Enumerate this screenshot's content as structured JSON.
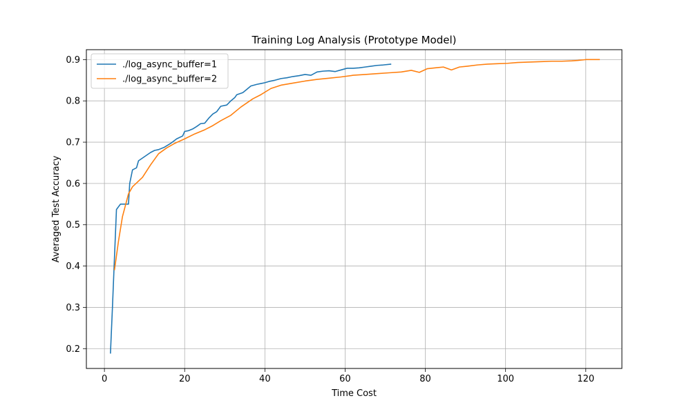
{
  "chart_data": {
    "type": "line",
    "title": "Training Log Analysis (Prototype Model)",
    "xlabel": "Time Cost",
    "ylabel": "Averaged Test Accuracy",
    "xlim": [
      -4.5,
      129.0
    ],
    "ylim": [
      0.152,
      0.924
    ],
    "x_ticks": [
      0,
      20,
      40,
      60,
      80,
      100,
      120
    ],
    "y_ticks": [
      0.2,
      0.3,
      0.4,
      0.5,
      0.6,
      0.7,
      0.8,
      0.9
    ],
    "grid": true,
    "legend_position": "top-left",
    "series": [
      {
        "name": "./log_async_buffer=1",
        "color": "#1f77b4",
        "x": [
          1.5,
          2.0,
          2.5,
          3.0,
          4.0,
          5.0,
          6.0,
          6.3,
          7.0,
          8.0,
          8.5,
          10.0,
          11.5,
          12.5,
          13.5,
          15.0,
          16.5,
          18.0,
          19.5,
          20.0,
          21.0,
          22.0,
          23.0,
          24.0,
          25.0,
          26.0,
          27.0,
          28.0,
          29.0,
          30.5,
          31.5,
          32.5,
          33.0,
          34.5,
          35.5,
          36.5,
          38.0,
          39.0,
          40.0,
          41.0,
          42.5,
          44.0,
          45.5,
          47.0,
          48.5,
          50.0,
          51.5,
          53.0,
          54.5,
          56.0,
          57.5,
          59.0,
          60.5,
          62.0,
          63.5,
          65.0,
          66.5,
          68.0,
          69.5,
          71.5
        ],
        "y": [
          0.188,
          0.3,
          0.42,
          0.537,
          0.55,
          0.55,
          0.55,
          0.6,
          0.633,
          0.638,
          0.655,
          0.665,
          0.675,
          0.68,
          0.682,
          0.688,
          0.697,
          0.708,
          0.715,
          0.726,
          0.728,
          0.732,
          0.738,
          0.745,
          0.746,
          0.758,
          0.768,
          0.774,
          0.787,
          0.79,
          0.8,
          0.808,
          0.815,
          0.82,
          0.828,
          0.836,
          0.84,
          0.842,
          0.844,
          0.847,
          0.85,
          0.854,
          0.856,
          0.859,
          0.861,
          0.864,
          0.862,
          0.87,
          0.872,
          0.873,
          0.871,
          0.875,
          0.879,
          0.879,
          0.88,
          0.882,
          0.884,
          0.886,
          0.887,
          0.889
        ]
      },
      {
        "name": "./log_async_buffer=2",
        "color": "#ff7f0e",
        "x": [
          2.5,
          3.5,
          4.5,
          6.0,
          7.0,
          9.5,
          11.5,
          13.5,
          15.5,
          17.5,
          20.0,
          22.5,
          25.0,
          27.0,
          29.0,
          31.5,
          34.0,
          37.0,
          39.0,
          41.5,
          44.0,
          47.0,
          50.0,
          53.0,
          56.0,
          59.0,
          62.0,
          65.0,
          68.0,
          71.0,
          74.0,
          76.5,
          78.5,
          80.5,
          82.5,
          84.5,
          86.5,
          88.5,
          90.5,
          93.0,
          95.5,
          98.0,
          100.5,
          103.0,
          106.0,
          109.0,
          111.5,
          114.0,
          116.5,
          118.0,
          120.0,
          123.5
        ],
        "y": [
          0.39,
          0.46,
          0.52,
          0.575,
          0.592,
          0.615,
          0.645,
          0.672,
          0.686,
          0.697,
          0.708,
          0.72,
          0.73,
          0.74,
          0.752,
          0.765,
          0.785,
          0.805,
          0.815,
          0.83,
          0.838,
          0.843,
          0.848,
          0.852,
          0.855,
          0.858,
          0.862,
          0.864,
          0.866,
          0.868,
          0.87,
          0.874,
          0.869,
          0.878,
          0.88,
          0.882,
          0.875,
          0.882,
          0.884,
          0.887,
          0.889,
          0.89,
          0.891,
          0.893,
          0.894,
          0.895,
          0.896,
          0.896,
          0.897,
          0.898,
          0.9,
          0.9
        ]
      }
    ]
  }
}
